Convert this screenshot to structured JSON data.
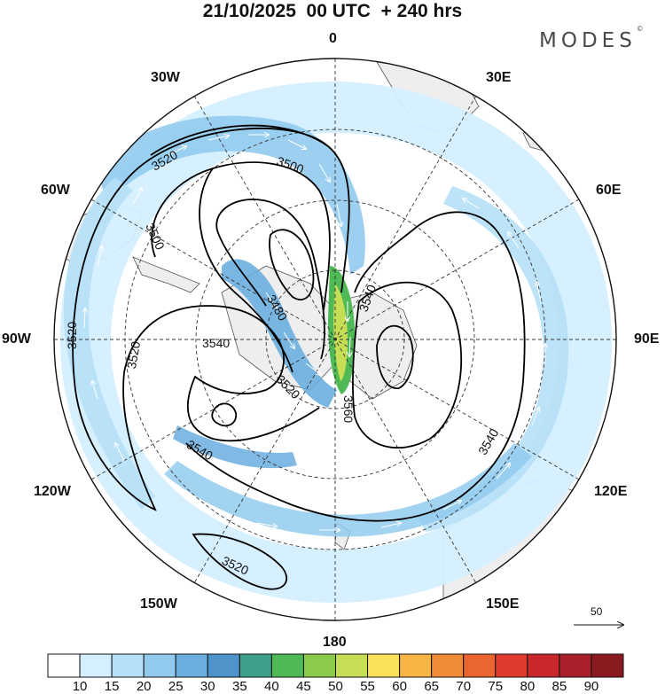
{
  "header": {
    "title": "21/10/2025  00 UTC  + 240 hrs",
    "brand": "MODES",
    "brand_mark": "©"
  },
  "map": {
    "projection": "south polar stereographic",
    "longitude_labels": {
      "top": "0",
      "bottom": "180",
      "left": "90W",
      "right": "90E",
      "upper_left_1": "30W",
      "upper_right_1": "30E",
      "upper_left_2": "60W",
      "upper_right_2": "60E",
      "lower_left_1": "120W",
      "lower_right_1": "120E",
      "lower_left_2": "150W",
      "lower_right_2": "150E"
    },
    "contour_labels": [
      "3520",
      "3500",
      "3500",
      "3540",
      "3520",
      "3480",
      "3520",
      "3540",
      "3520",
      "3540",
      "3560",
      "3540",
      "3520"
    ],
    "reference_vector": "50"
  },
  "colorbar": {
    "labels": [
      "10",
      "15",
      "20",
      "25",
      "30",
      "35",
      "40",
      "45",
      "50",
      "55",
      "60",
      "65",
      "70",
      "75",
      "80",
      "85",
      "90"
    ],
    "colors": [
      "#ffffff",
      "#d4efff",
      "#b6e0f8",
      "#92cbee",
      "#6aaedf",
      "#4f93cb",
      "#3ea08a",
      "#4fb956",
      "#8bcb4b",
      "#c6de55",
      "#fbe15a",
      "#f8b545",
      "#f08c38",
      "#ea6530",
      "#e03c2d",
      "#c8282a",
      "#a8202a",
      "#8a1a20"
    ]
  }
}
